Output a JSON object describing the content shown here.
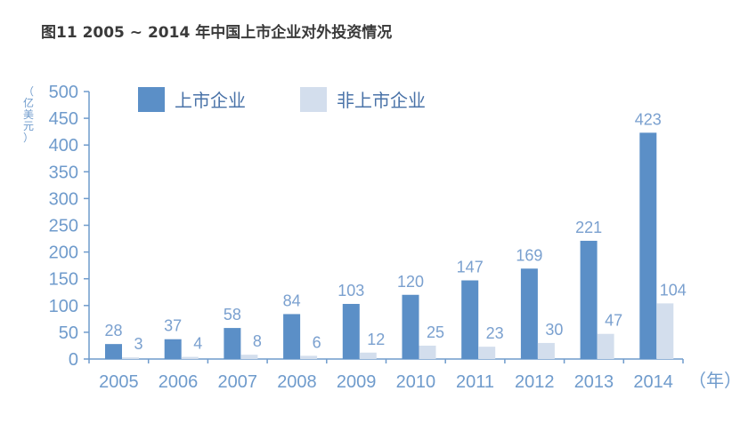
{
  "chart_data": {
    "type": "bar",
    "title": "图11  2005 ~ 2014 年中国上市企业对外投资情况",
    "ylabel": "（亿美元）",
    "xunit": "（年）",
    "categories": [
      "2005",
      "2006",
      "2007",
      "2008",
      "2009",
      "2010",
      "2011",
      "2012",
      "2013",
      "2014"
    ],
    "series": [
      {
        "name": "上市企业",
        "values": [
          28,
          37,
          58,
          84,
          103,
          120,
          147,
          169,
          221,
          423
        ],
        "color": "#5b8fc7"
      },
      {
        "name": "非上市企业",
        "values": [
          3,
          4,
          8,
          6,
          12,
          25,
          23,
          30,
          47,
          104
        ],
        "color": "#d3deed"
      }
    ],
    "ylim": [
      0,
      500
    ],
    "yticks": [
      0,
      50,
      100,
      150,
      200,
      250,
      300,
      350,
      400,
      450,
      500
    ],
    "grid": false,
    "legend_position": "top-left"
  }
}
